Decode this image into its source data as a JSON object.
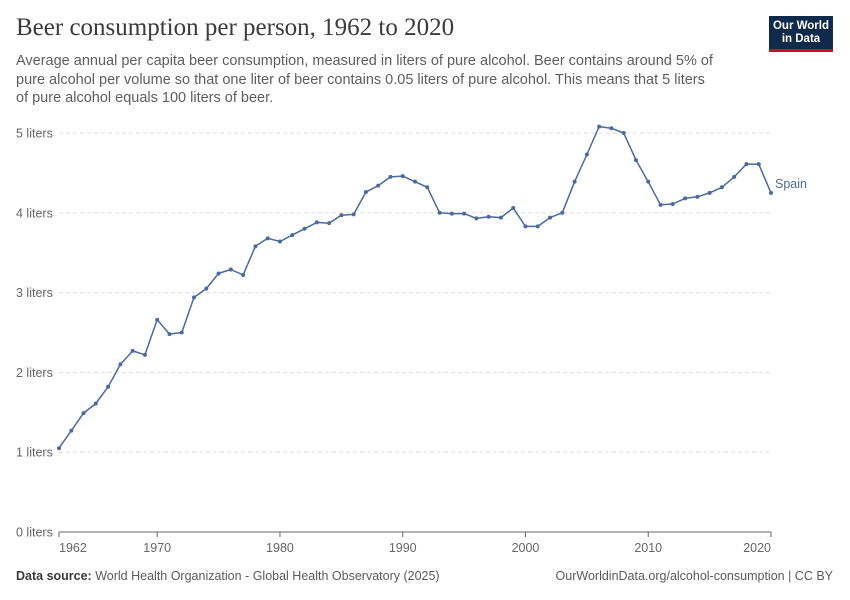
{
  "title": "Beer consumption per person, 1962 to 2020",
  "subtitle": "Average annual per capita beer consumption, measured in liters of pure alcohol. Beer contains around 5% of pure alcohol per volume so that one liter of beer contains 0.05 liters of pure alcohol. This means that 5 liters of pure alcohol equals 100 liters of beer.",
  "logo": {
    "line1": "Our World",
    "line2": "in Data"
  },
  "footer": {
    "source_label": "Data source:",
    "source_text": "World Health Organization - Global Health Observatory (2025)",
    "url_license": "OurWorldinData.org/alcohol-consumption | CC BY"
  },
  "colors": {
    "series": "#4c6a9c",
    "grid": "#dddddd",
    "axis": "#666666"
  },
  "chart_data": {
    "type": "line",
    "title": "Beer consumption per person, 1962 to 2020",
    "xlabel": "",
    "ylabel": "",
    "xlim": [
      1962,
      2020
    ],
    "ylim": [
      0,
      5
    ],
    "y_unit": "liters",
    "grid": true,
    "x_ticks": [
      {
        "value": 1962,
        "label": "1962"
      },
      {
        "value": 1970,
        "label": "1970"
      },
      {
        "value": 1980,
        "label": "1980"
      },
      {
        "value": 1990,
        "label": "1990"
      },
      {
        "value": 2000,
        "label": "2000"
      },
      {
        "value": 2010,
        "label": "2010"
      },
      {
        "value": 2020,
        "label": "2020"
      }
    ],
    "y_ticks": [
      {
        "value": 0,
        "label": "0 liters"
      },
      {
        "value": 1,
        "label": "1 liters"
      },
      {
        "value": 2,
        "label": "2 liters"
      },
      {
        "value": 3,
        "label": "3 liters"
      },
      {
        "value": 4,
        "label": "4 liters"
      },
      {
        "value": 5,
        "label": "5 liters"
      }
    ],
    "series": [
      {
        "name": "Spain",
        "x": [
          1962,
          1963,
          1964,
          1965,
          1966,
          1967,
          1968,
          1969,
          1970,
          1971,
          1972,
          1973,
          1974,
          1975,
          1976,
          1977,
          1978,
          1979,
          1980,
          1981,
          1982,
          1983,
          1984,
          1985,
          1986,
          1987,
          1988,
          1989,
          1990,
          1991,
          1992,
          1993,
          1994,
          1995,
          1996,
          1997,
          1998,
          1999,
          2000,
          2001,
          2002,
          2003,
          2004,
          2005,
          2006,
          2007,
          2008,
          2009,
          2010,
          2011,
          2012,
          2013,
          2014,
          2015,
          2016,
          2017,
          2018,
          2019,
          2020
        ],
        "y": [
          1.05,
          1.27,
          1.49,
          1.61,
          1.82,
          2.1,
          2.27,
          2.22,
          2.66,
          2.48,
          2.5,
          2.94,
          3.05,
          3.24,
          3.29,
          3.22,
          3.58,
          3.68,
          3.64,
          3.72,
          3.8,
          3.88,
          3.87,
          3.97,
          3.98,
          4.26,
          4.34,
          4.45,
          4.46,
          4.39,
          4.32,
          4.0,
          3.99,
          3.99,
          3.93,
          3.95,
          3.94,
          4.06,
          3.83,
          3.83,
          3.94,
          4.0,
          4.39,
          4.73,
          5.08,
          5.06,
          5.0,
          4.66,
          4.39,
          4.1,
          4.11,
          4.18,
          4.2,
          4.25,
          4.32,
          4.45,
          4.61,
          4.61,
          4.25
        ]
      }
    ]
  }
}
